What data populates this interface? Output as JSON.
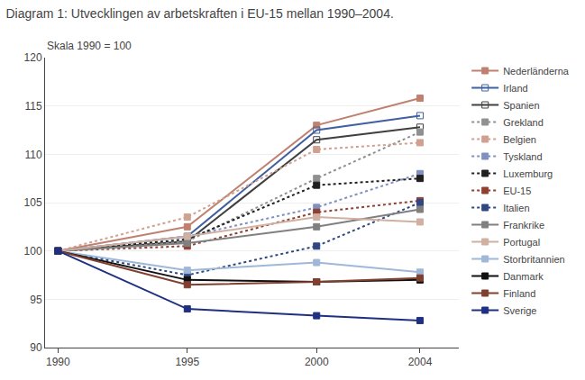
{
  "chart_data": {
    "type": "line",
    "title": "Diagram 1: Utvecklingen av arbetskraften i EU-15 mellan 1990–2004.",
    "subtitle": "Skala 1990 = 100",
    "x": [
      1990,
      1995,
      2000,
      2004
    ],
    "xlim": [
      1989.5,
      2005.5
    ],
    "xticks": [
      1990,
      1995,
      2000,
      2004
    ],
    "ylim": [
      90,
      120
    ],
    "yticks": [
      90,
      95,
      100,
      105,
      110,
      115,
      120
    ],
    "grid": "y",
    "legend": "right",
    "series": [
      {
        "name": "Nederländerna",
        "color": "#c08070",
        "line_style": "solid",
        "marker": "square",
        "values": [
          100,
          102.5,
          113.0,
          115.8
        ]
      },
      {
        "name": "Irland",
        "color": "#4060a0",
        "line_style": "solid",
        "marker": "square-open",
        "values": [
          100,
          101.5,
          112.5,
          114.0
        ]
      },
      {
        "name": "Spanien",
        "color": "#404040",
        "line_style": "solid",
        "marker": "square-open",
        "values": [
          100,
          101.0,
          111.5,
          112.8
        ]
      },
      {
        "name": "Grekland",
        "color": "#909090",
        "line_style": "dotted",
        "marker": "square",
        "values": [
          100,
          101.0,
          107.5,
          112.3
        ]
      },
      {
        "name": "Belgien",
        "color": "#d0a090",
        "line_style": "dotted",
        "marker": "square",
        "values": [
          100,
          103.5,
          110.5,
          111.2
        ]
      },
      {
        "name": "Tyskland",
        "color": "#8090c0",
        "line_style": "dotted",
        "marker": "square",
        "values": [
          100,
          101.5,
          104.5,
          108.0
        ]
      },
      {
        "name": "Luxemburg",
        "color": "#202020",
        "line_style": "dotted",
        "marker": "square",
        "values": [
          100,
          101.2,
          106.8,
          107.5
        ]
      },
      {
        "name": "EU-15",
        "color": "#904030",
        "line_style": "dotted",
        "marker": "square",
        "values": [
          100,
          100.5,
          104.0,
          105.2
        ]
      },
      {
        "name": "Italien",
        "color": "#304880",
        "line_style": "dotted",
        "marker": "square",
        "values": [
          100,
          97.5,
          100.5,
          105.0
        ]
      },
      {
        "name": "Frankrike",
        "color": "#808080",
        "line_style": "solid",
        "marker": "square",
        "values": [
          100,
          100.8,
          102.5,
          104.3
        ]
      },
      {
        "name": "Portugal",
        "color": "#d0b0a0",
        "line_style": "solid",
        "marker": "square",
        "values": [
          100,
          101.5,
          103.5,
          103.0
        ]
      },
      {
        "name": "Storbritannien",
        "color": "#a0b8d8",
        "line_style": "solid",
        "marker": "square",
        "values": [
          100,
          98.0,
          98.8,
          97.8
        ]
      },
      {
        "name": "Danmark",
        "color": "#101010",
        "line_style": "solid",
        "marker": "square",
        "values": [
          100,
          97.0,
          96.8,
          97.0
        ]
      },
      {
        "name": "Finland",
        "color": "#804030",
        "line_style": "solid",
        "marker": "square",
        "values": [
          100,
          96.5,
          96.8,
          97.2
        ]
      },
      {
        "name": "Sverige",
        "color": "#203080",
        "line_style": "solid",
        "marker": "square",
        "values": [
          100,
          94.0,
          93.3,
          92.8
        ]
      }
    ]
  }
}
